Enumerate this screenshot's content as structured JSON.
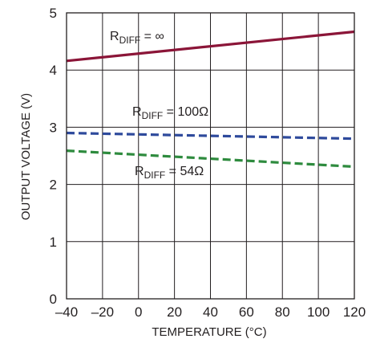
{
  "chart_data": {
    "type": "line",
    "title": "",
    "xlabel": "TEMPERATURE (°C)",
    "ylabel": "OUTPUT VOLTAGE (V)",
    "xlim": [
      -40,
      120
    ],
    "ylim": [
      0,
      5
    ],
    "x_ticks": [
      -40,
      -20,
      0,
      20,
      40,
      60,
      80,
      100,
      120
    ],
    "x_tick_labels": [
      "–40",
      "–20",
      "0",
      "20",
      "40",
      "60",
      "80",
      "100",
      "120"
    ],
    "y_ticks": [
      0,
      1,
      2,
      3,
      4,
      5
    ],
    "y_tick_labels": [
      "0",
      "1",
      "2",
      "3",
      "4",
      "5"
    ],
    "grid": true,
    "legend": "none",
    "series": [
      {
        "label_main": "R",
        "label_sub": "DIFF",
        "label_rest": " = ∞",
        "color": "#8b1538",
        "style": "solid",
        "x": [
          -40,
          120
        ],
        "y": [
          4.16,
          4.67
        ]
      },
      {
        "label_main": "R",
        "label_sub": "DIFF",
        "label_rest": " = 100Ω",
        "color": "#2e4a9c",
        "style": "dashed",
        "x": [
          -40,
          120
        ],
        "y": [
          2.9,
          2.8
        ]
      },
      {
        "label_main": "R",
        "label_sub": "DIFF",
        "label_rest": " = 54Ω",
        "color": "#2e8b3e",
        "style": "dashed",
        "x": [
          -40,
          120
        ],
        "y": [
          2.59,
          2.31
        ]
      }
    ]
  }
}
